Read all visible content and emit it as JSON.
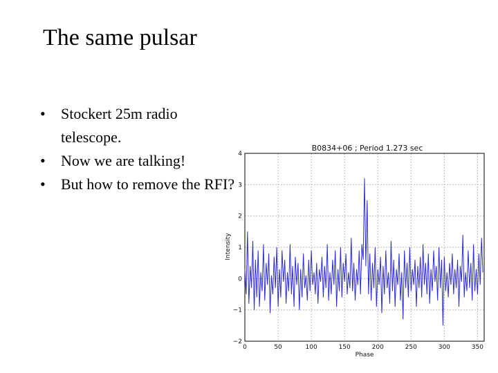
{
  "slide": {
    "title": "The same pulsar",
    "bullets": [
      "Stockert 25m radio telescope.",
      "Now we are talking!",
      "But how to remove the RFI?"
    ]
  },
  "chart_data": {
    "type": "line",
    "title": "B0834+06 ; Period 1.273 sec",
    "xlabel": "Phase",
    "ylabel": "Intensity",
    "xlim": [
      0,
      360
    ],
    "ylim": [
      -2,
      4
    ],
    "xticks": [
      0,
      50,
      100,
      150,
      200,
      250,
      300,
      350
    ],
    "yticks": [
      4,
      3,
      2,
      1,
      0,
      -1,
      -2
    ],
    "ytick_labels": [
      "4",
      "3",
      "2",
      "1",
      "0",
      "−1",
      "−2"
    ],
    "grid": true,
    "line_color": "#2b2bd6",
    "series": [
      {
        "x": [
          0,
          2,
          4,
          6,
          8,
          10,
          12,
          14,
          16,
          18,
          20,
          22,
          24,
          26,
          28,
          30,
          32,
          34,
          36,
          38,
          40,
          42,
          44,
          46,
          48,
          50,
          52,
          54,
          56,
          58,
          60,
          62,
          64,
          66,
          68,
          70,
          72,
          74,
          76,
          78,
          80,
          82,
          84,
          86,
          88,
          90,
          92,
          94,
          96,
          98,
          100,
          102,
          104,
          106,
          108,
          110,
          112,
          114,
          116,
          118,
          120,
          122,
          124,
          126,
          128,
          130,
          132,
          134,
          136,
          138,
          140,
          142,
          144,
          146,
          148,
          150,
          152,
          154,
          156,
          158,
          160,
          162,
          164,
          166,
          168,
          170,
          172,
          174,
          176,
          178,
          180,
          182,
          184,
          186,
          188,
          190,
          192,
          194,
          196,
          198,
          200,
          202,
          204,
          206,
          208,
          210,
          212,
          214,
          216,
          218,
          220,
          222,
          224,
          226,
          228,
          230,
          232,
          234,
          236,
          238,
          240,
          242,
          244,
          246,
          248,
          250,
          252,
          254,
          256,
          258,
          260,
          262,
          264,
          266,
          268,
          270,
          272,
          274,
          276,
          278,
          280,
          282,
          284,
          286,
          288,
          290,
          292,
          294,
          296,
          298,
          300,
          302,
          304,
          306,
          308,
          310,
          312,
          314,
          316,
          318,
          320,
          322,
          324,
          326,
          328,
          330,
          332,
          334,
          336,
          338,
          340,
          342,
          344,
          346,
          348,
          350,
          352,
          354,
          356,
          358
        ],
        "y": [
          0.3,
          -0.5,
          1.5,
          -0.8,
          0.4,
          -0.3,
          1.2,
          -1.0,
          0.6,
          -0.6,
          0.9,
          -0.9,
          0.2,
          -0.4,
          1.1,
          -0.7,
          0.5,
          -0.2,
          0.8,
          -1.1,
          0.1,
          -0.5,
          0.7,
          -0.3,
          1.0,
          -0.9,
          0.3,
          -0.6,
          0.9,
          -0.1,
          0.6,
          -0.8,
          0.2,
          -0.4,
          1.1,
          -0.5,
          0.4,
          -0.9,
          0.7,
          -0.2,
          0.5,
          -1.0,
          0.3,
          -0.6,
          0.8,
          -0.3,
          0.1,
          -0.7,
          0.6,
          -0.4,
          0.9,
          -0.2,
          0.2,
          -0.5,
          0.5,
          -0.8,
          0.3,
          -0.1,
          0.7,
          -0.6,
          0.4,
          -0.3,
          1.1,
          -0.7,
          0.2,
          -0.5,
          0.6,
          -0.2,
          0.9,
          -0.9,
          0.3,
          -0.4,
          1.0,
          -0.6,
          0.5,
          -0.1,
          0.8,
          -0.5,
          0.2,
          -0.3,
          1.3,
          -0.4,
          0.5,
          -0.7,
          0.3,
          -0.2,
          0.9,
          -0.5,
          1.1,
          0.6,
          3.2,
          0.4,
          2.5,
          -0.5,
          0.8,
          -0.7,
          0.5,
          -0.3,
          1.0,
          -0.9,
          0.3,
          -0.2,
          0.7,
          -1.1,
          0.4,
          -0.5,
          0.9,
          -0.3,
          0.2,
          -0.8,
          1.2,
          -0.4,
          0.6,
          -0.9,
          0.3,
          -0.2,
          0.8,
          -0.7,
          0.2,
          -1.3,
          0.9,
          -0.3,
          0.5,
          -0.6,
          1.0,
          -0.4,
          0.3,
          -0.2,
          0.6,
          -0.9,
          0.4,
          -0.3,
          0.7,
          -0.6,
          1.1,
          -0.2,
          0.5,
          -0.5,
          0.8,
          -0.8,
          0.3,
          -0.4,
          0.9,
          -0.1,
          0.4,
          -0.7,
          1.0,
          -0.3,
          0.6,
          -1.5,
          0.7,
          -0.4,
          0.2,
          -0.6,
          0.5,
          -0.2,
          0.8,
          -0.5,
          0.3,
          -0.3,
          0.6,
          -0.9,
          0.4,
          -0.1,
          1.4,
          -0.6,
          0.2,
          -0.4,
          0.9,
          -0.3,
          0.5,
          -0.7,
          1.1,
          -0.4,
          0.3,
          -0.5,
          0.8,
          -0.2,
          1.3,
          0.2
        ]
      }
    ]
  }
}
